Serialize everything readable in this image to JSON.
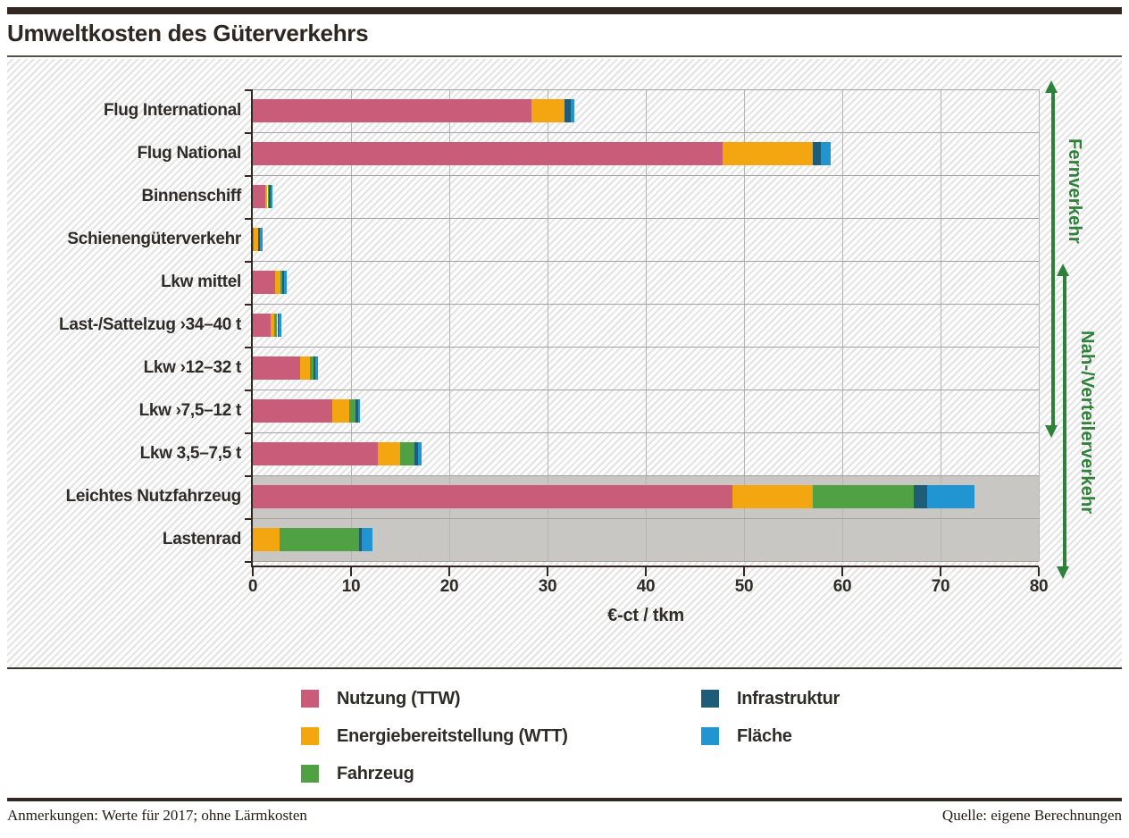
{
  "title": "Umweltkosten des Güterverkehrs",
  "footer": {
    "notes": "Anmerkungen: Werte für 2017; ohne Lärmkosten",
    "source": "Quelle: eigene Berechnungen"
  },
  "colors": {
    "nutzung_ttw": "#c95c78",
    "energiebereitstellung_wtt": "#f3a60f",
    "fahrzeug": "#50a144",
    "infrastruktur": "#1f5c78",
    "flaeche": "#2095d2",
    "group_arrow_green": "#2f8038",
    "highlight_band_gray": "#c8c7c4",
    "axis_dark": "#332721"
  },
  "group_arrows": [
    {
      "label": "Fernverkehr",
      "from_category": "Flug International",
      "to_category": "Lkw ›7,5–12 t"
    },
    {
      "label": "Nah-/Verteilerverkehr",
      "from_category": "Lkw mittel",
      "to_category": "Lastenrad"
    }
  ],
  "chart_data": {
    "type": "bar",
    "orientation": "horizontal",
    "stacked": true,
    "title": "Umweltkosten des Güterverkehrs",
    "xlabel": "€-ct / tkm",
    "xlim": [
      0,
      80
    ],
    "xticks": [
      "0",
      "10",
      "20",
      "30",
      "40",
      "50",
      "60",
      "70",
      "80"
    ],
    "grid": true,
    "legend_position": "bottom",
    "categories": [
      "Flug International",
      "Flug National",
      "Binnenschiff",
      "Schienengüterverkehr",
      "Lkw mittel",
      "Last-/Sattelzug ›34–40 t",
      "Lkw ›12–32 t",
      "Lkw ›7,5–12 t",
      "Lkw 3,5–7,5 t",
      "Leichtes Nutzfahrzeug",
      "Lastenrad"
    ],
    "series": [
      {
        "name": "Nutzung (TTW)",
        "color": "#c95c78",
        "values": [
          28.4,
          47.8,
          1.3,
          0.1,
          2.3,
          1.8,
          4.8,
          8.1,
          12.7,
          48.8,
          0
        ]
      },
      {
        "name": "Energiebereitstellung (WTT)",
        "color": "#f3a60f",
        "values": [
          3.3,
          9.2,
          0.2,
          0.45,
          0.5,
          0.4,
          1.05,
          1.7,
          2.3,
          8.2,
          2.75
        ]
      },
      {
        "name": "Fahrzeug",
        "color": "#50a144",
        "values": [
          0,
          0,
          0.1,
          0,
          0.2,
          0.3,
          0.35,
          0.65,
          1.45,
          10.3,
          8.1
        ]
      },
      {
        "name": "Infrastruktur",
        "color": "#1f5c78",
        "values": [
          0.7,
          0.8,
          0.2,
          0.2,
          0.2,
          0.15,
          0.2,
          0.25,
          0.4,
          1.3,
          0.2
        ]
      },
      {
        "name": "Fläche",
        "color": "#2095d2",
        "values": [
          0.3,
          1.0,
          0.2,
          0.25,
          0.3,
          0.25,
          0.25,
          0.2,
          0.3,
          4.9,
          1.15
        ]
      }
    ],
    "totals": [
      32.7,
      58.8,
      2.0,
      1.0,
      3.5,
      2.9,
      6.65,
      10.9,
      17.15,
      73.5,
      12.2
    ],
    "highlighted_categories": [
      "Leichtes Nutzfahrzeug",
      "Lastenrad"
    ],
    "legend_columns": [
      [
        0,
        1,
        2
      ],
      [
        3,
        4
      ]
    ]
  }
}
